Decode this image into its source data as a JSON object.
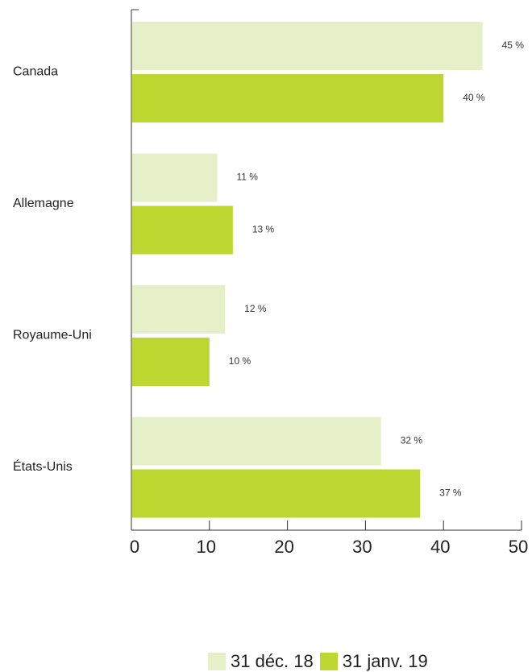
{
  "chart_data": {
    "type": "bar",
    "orientation": "horizontal",
    "categories": [
      "Canada",
      "Allemagne",
      "Royaume-Uni",
      "États-Unis"
    ],
    "series": [
      {
        "name": "31 déc. 18",
        "values": [
          45,
          11,
          12,
          32
        ],
        "labels": [
          "45 %",
          "11 %",
          "12 %",
          "32 %"
        ],
        "color": "#e5f0c8"
      },
      {
        "name": "31 janv. 19",
        "values": [
          40,
          13,
          10,
          37
        ],
        "labels": [
          "40 %",
          "13 %",
          "10 %",
          "37 %"
        ],
        "color": "#bdd630"
      }
    ],
    "xlim": [
      0,
      50
    ],
    "xticks": [
      0,
      10,
      20,
      30,
      40,
      50
    ],
    "xtick_labels": [
      "0",
      "10",
      "20",
      "30",
      "40",
      "50"
    ],
    "grid": false,
    "legend_position": "bottom"
  }
}
